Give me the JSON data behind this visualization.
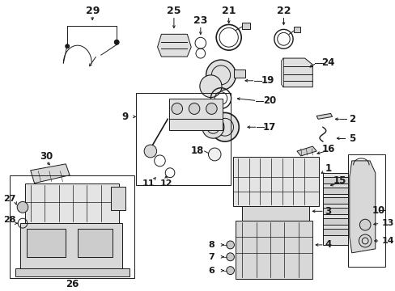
{
  "bg": "#ffffff",
  "fw": 4.89,
  "fh": 3.6,
  "dpi": 100,
  "lc": "#1a1a1a",
  "fc": "#e8e8e8",
  "lw": 0.7
}
